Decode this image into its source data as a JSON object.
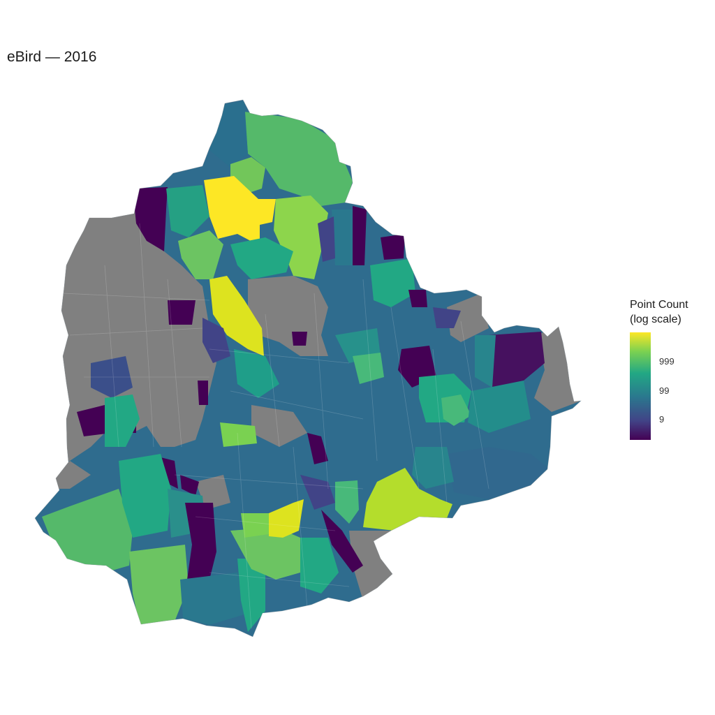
{
  "title": "eBird — 2016",
  "legend": {
    "title_line1": "Point Count",
    "title_line2": "(log scale)",
    "ticks": [
      {
        "label": "999",
        "value": 999
      },
      {
        "label": "99",
        "value": 99
      },
      {
        "label": "9",
        "value": 9
      }
    ],
    "colors": [
      "#440154",
      "#414487",
      "#2a788e",
      "#22a884",
      "#7ad151",
      "#fde725"
    ],
    "na_color": "#808080"
  },
  "chart_data": {
    "type": "choropleth",
    "title": "eBird — 2016",
    "legend_title": "Point Count (log scale)",
    "scale": "log",
    "legend_placement": "right",
    "legend_ticks": [
      9,
      99,
      999
    ],
    "grid": false,
    "na_color": "#808080"
  }
}
